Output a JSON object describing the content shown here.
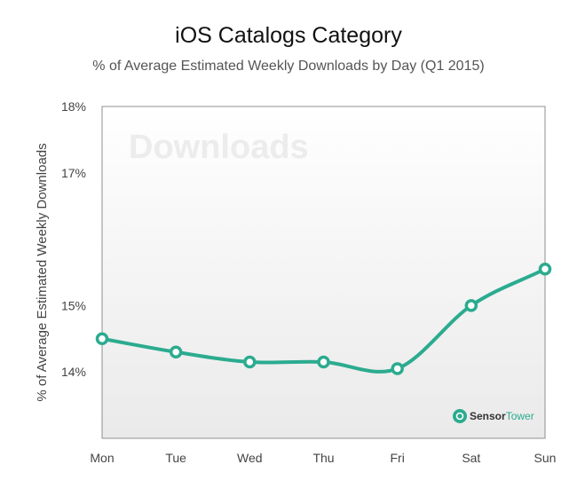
{
  "chart_data": {
    "type": "line",
    "title": "iOS Catalogs Category",
    "subtitle": "% of Average Estimated Weekly Downloads by Day (Q1 2015)",
    "ylabel": "% of  Average Estimated Weekly Downloads",
    "xlabel": "",
    "categories": [
      "Mon",
      "Tue",
      "Wed",
      "Thu",
      "Fri",
      "Sat",
      "Sun"
    ],
    "values": [
      14.5,
      14.3,
      14.15,
      14.15,
      14.05,
      15.0,
      15.55
    ],
    "ylim": [
      13.0,
      18.0
    ],
    "yticks": [
      14,
      15,
      17,
      18
    ],
    "ytick_labels": [
      "14%",
      "15%",
      "17%",
      "18%"
    ],
    "grid": false,
    "line_color": "#2bab8f",
    "watermark": "Downloads",
    "brand": {
      "name_part1": "Sensor",
      "name_part2": "Tower"
    }
  }
}
